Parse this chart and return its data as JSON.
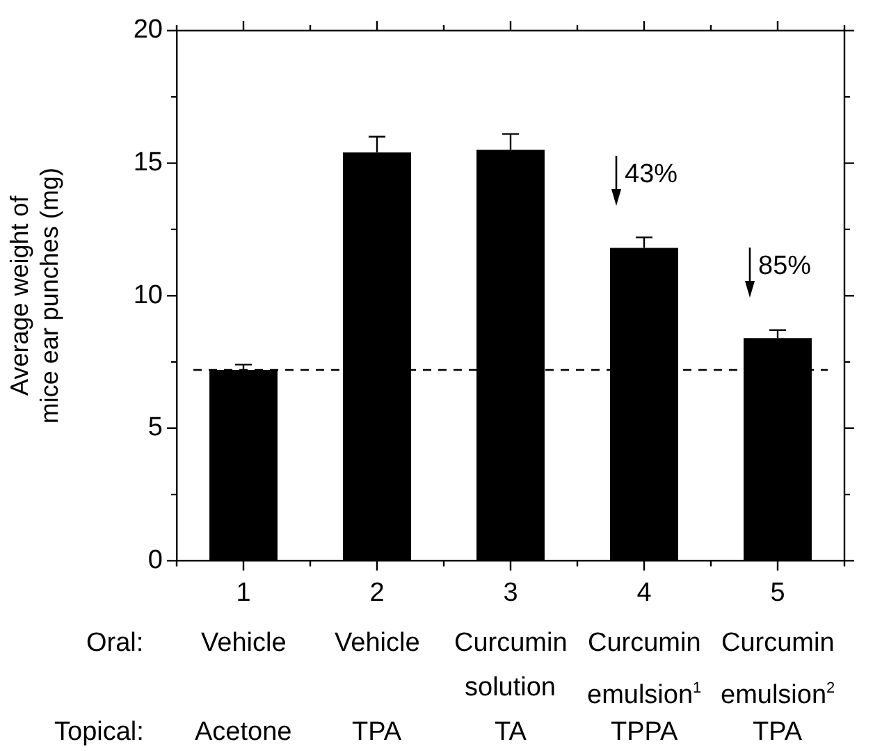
{
  "chart_data": {
    "type": "bar",
    "ylabel": "Average weight of mice ear punches (mg)",
    "categories": [
      "1",
      "2",
      "3",
      "4",
      "5"
    ],
    "values": [
      7.2,
      15.4,
      15.5,
      11.8,
      8.4
    ],
    "errors": [
      0.2,
      0.6,
      0.6,
      0.4,
      0.3
    ],
    "color": "#000000",
    "ylim": [
      0,
      20
    ],
    "yticks": [
      0,
      {
        "value": 2.5,
        "label": null
      },
      5,
      {
        "value": 7.5,
        "label": null
      },
      10,
      {
        "value": 12.5,
        "label": null
      },
      15,
      {
        "value": 17.5,
        "label": null
      },
      20
    ],
    "ref_lines": [
      {
        "axis": "y",
        "value": 7.2,
        "line_style": "dashed",
        "color": "#000000"
      }
    ],
    "grid": false,
    "legend": false,
    "annotations": [
      "43%",
      "85%",
      "Oral:",
      "Vehicle",
      "Vehicle",
      "Curcumin",
      "Curcumin",
      "Curcumin",
      "solution",
      "emulsion$^{1}$",
      "emulsion$^{2}$",
      "Topical:",
      "Acetone",
      "TPA",
      "TA",
      "TPPA",
      "TPA"
    ]
  }
}
